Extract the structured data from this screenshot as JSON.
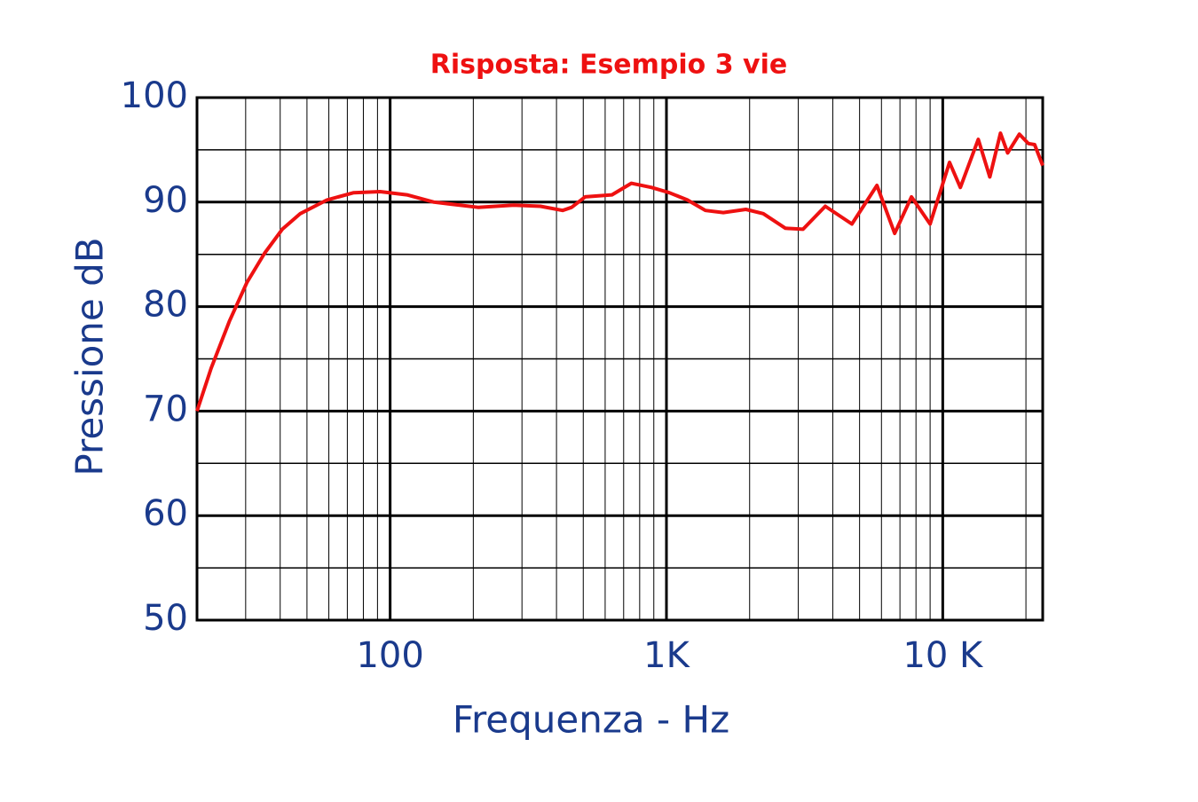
{
  "chart_data": {
    "type": "line",
    "title": "Risposta: Esempio 3 vie",
    "xlabel": "Frequenza - Hz",
    "ylabel": "Pressione  dB",
    "xscale": "log",
    "grid": true,
    "minor_grid": true,
    "xlim": [
      20,
      23000
    ],
    "ylim": [
      50,
      100
    ],
    "xticks": [
      100,
      {
        "value": 1000,
        "label": "1K"
      },
      {
        "value": 10000,
        "label": "10 K"
      }
    ],
    "yticks": [
      50,
      60,
      70,
      80,
      90,
      100
    ],
    "x": [
      20,
      22.5,
      26.2,
      30.3,
      35.1,
      40.7,
      47.3,
      59.1,
      73.8,
      92,
      115,
      144,
      208,
      280,
      350,
      421,
      454,
      508,
      635,
      746,
      884,
      1024,
      1191,
      1384,
      1606,
      1938,
      2240,
      2696,
      3121,
      3757,
      4692,
      5778,
      6700,
      7706,
      9000,
      10580,
      11580,
      13450,
      14800,
      16180,
      17170,
      18930,
      20400,
      21500,
      23000
    ],
    "series": [
      {
        "name": "Risposta",
        "color": "#ee1111",
        "values": [
          70.0,
          74.1,
          78.6,
          82.3,
          85.1,
          87.4,
          88.9,
          90.2,
          90.9,
          91.0,
          90.7,
          90.0,
          89.5,
          89.7,
          89.6,
          89.2,
          89.5,
          90.5,
          90.7,
          91.8,
          91.4,
          90.9,
          90.2,
          89.2,
          89.0,
          89.3,
          88.9,
          87.5,
          87.4,
          89.6,
          87.9,
          91.6,
          87.0,
          90.5,
          87.9,
          93.8,
          91.4,
          96.0,
          92.4,
          96.6,
          94.7,
          96.5,
          95.6,
          95.5,
          93.5
        ]
      }
    ]
  }
}
